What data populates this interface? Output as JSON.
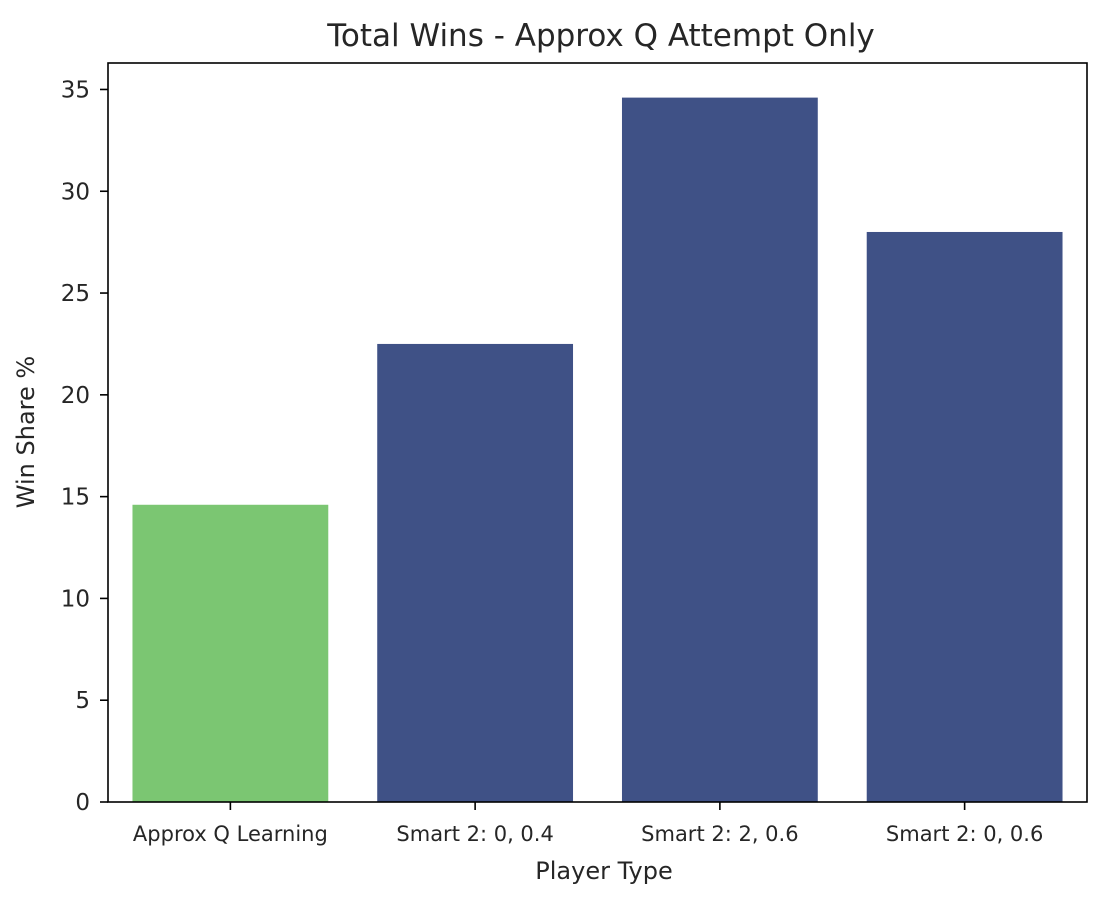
{
  "chart_data": {
    "type": "bar",
    "title": "Total Wins - Approx Q Attempt Only",
    "xlabel": "Player Type",
    "ylabel": "Win Share %",
    "categories": [
      "Approx Q Learning",
      "Smart 2: 0, 0.4",
      "Smart 2: 2, 0.6",
      "Smart 2: 0, 0.6"
    ],
    "values": [
      14.6,
      22.5,
      34.6,
      28.0
    ],
    "bar_colors": [
      "#7bc672",
      "#3f5186",
      "#3f5186",
      "#3f5186"
    ],
    "ylim": [
      0,
      36.3
    ],
    "yticks": [
      0,
      5,
      10,
      15,
      20,
      25,
      30,
      35
    ],
    "grid": false,
    "legend": "none"
  }
}
